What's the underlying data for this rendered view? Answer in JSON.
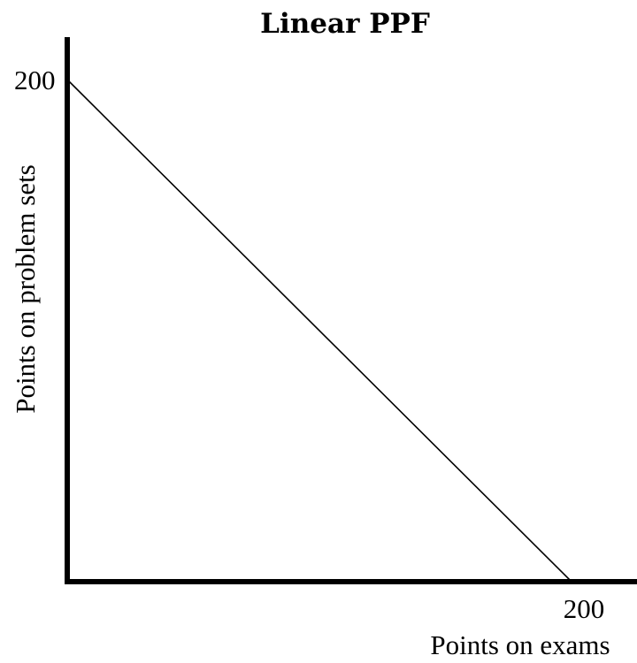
{
  "chart_data": {
    "type": "line",
    "title": "Linear PPF",
    "xlabel": "Points on exams",
    "ylabel": "Points on problem sets",
    "xlim": [
      0,
      200
    ],
    "ylim": [
      0,
      200
    ],
    "x_ticks": [
      200
    ],
    "y_ticks": [
      200
    ],
    "grid": false,
    "series": [
      {
        "x": [
          0,
          200
        ],
        "y": [
          200,
          0
        ]
      }
    ],
    "colors": {
      "line": "#000000",
      "axes": "#000000"
    }
  }
}
